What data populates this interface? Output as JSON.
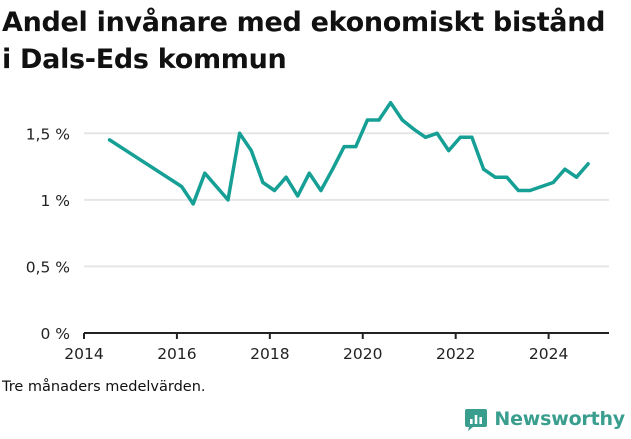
{
  "colors": {
    "line": "#16a095",
    "grid": "#e6e6e6",
    "axis": "#222222",
    "brand": "#3a9e8f"
  },
  "chart_data": {
    "type": "line",
    "title": "Andel invånare med ekonomiskt bistånd i Dals-Eds kommun",
    "footnote": "Tre månaders medelvärden.",
    "xlim": [
      2014,
      2025.3
    ],
    "ylim": [
      0,
      1.75
    ],
    "xticks": [
      2014,
      2016,
      2018,
      2020,
      2022,
      2024
    ],
    "xtick_labels": [
      "2014",
      "2016",
      "2018",
      "2020",
      "2022",
      "2024"
    ],
    "yticks": [
      0,
      0.5,
      1,
      1.5
    ],
    "ytick_labels": [
      "0 %",
      "0,5 %",
      "1 %",
      "1,5 %"
    ],
    "grid": "horizontal",
    "series": [
      {
        "x": [
          2014.55,
          2016.1,
          2016.35,
          2016.6,
          2017.1,
          2017.35,
          2017.6,
          2017.85,
          2018.1,
          2018.35,
          2018.6,
          2018.85,
          2019.1,
          2019.35,
          2019.6,
          2019.85,
          2020.1,
          2020.35,
          2020.6,
          2020.85,
          2021.1,
          2021.35,
          2021.6,
          2021.85,
          2022.1,
          2022.35,
          2022.6,
          2022.85,
          2023.1,
          2023.35,
          2023.6,
          2023.85,
          2024.1,
          2024.35,
          2024.6,
          2024.85
        ],
        "values": [
          1.45,
          1.1,
          0.97,
          1.2,
          1.0,
          1.5,
          1.37,
          1.13,
          1.07,
          1.17,
          1.03,
          1.2,
          1.07,
          1.23,
          1.4,
          1.4,
          1.6,
          1.6,
          1.73,
          1.6,
          1.53,
          1.47,
          1.5,
          1.37,
          1.47,
          1.47,
          1.23,
          1.17,
          1.17,
          1.07,
          1.07,
          1.1,
          1.13,
          1.23,
          1.17,
          1.27
        ]
      }
    ]
  },
  "brand": {
    "name": "Newsworthy",
    "icon": "newsworthy-logo-icon"
  }
}
